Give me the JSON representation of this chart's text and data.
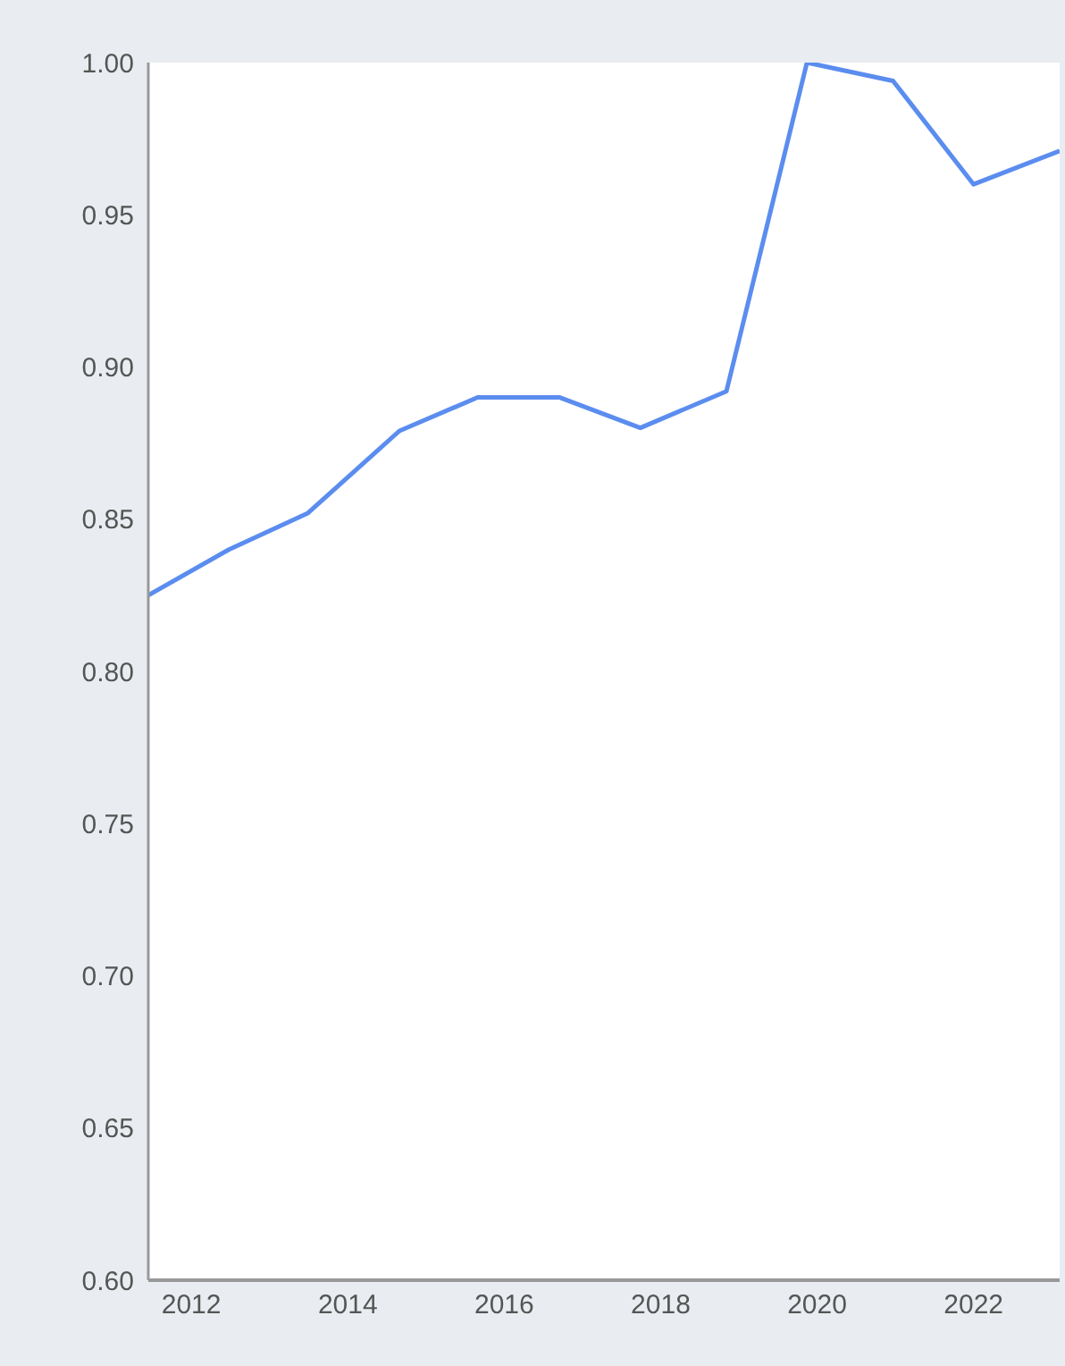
{
  "chart_data": {
    "type": "line",
    "x": [
      2011.45,
      2012.48,
      2013.49,
      2014.66,
      2015.66,
      2016.71,
      2017.74,
      2018.84,
      2019.87,
      2020.97,
      2022.0,
      2023.1
    ],
    "series": [
      {
        "color": "#5b8def",
        "values": [
          0.825,
          0.84,
          0.852,
          0.879,
          0.89,
          0.89,
          0.88,
          0.892,
          1.0,
          0.994,
          0.96,
          0.971
        ]
      }
    ],
    "xlim": [
      2011.45,
      2023.1
    ],
    "xticks": [
      2012,
      2014,
      2016,
      2018,
      2020,
      2022
    ],
    "ylim": [
      0.6,
      1.0
    ],
    "yticks": [
      {
        "value": 0.6,
        "label": "0.60"
      },
      {
        "value": 0.65,
        "label": "0.65"
      },
      {
        "value": 0.7,
        "label": "0.70"
      },
      {
        "value": 0.75,
        "label": "0.75"
      },
      {
        "value": 0.8,
        "label": "0.80"
      },
      {
        "value": 0.85,
        "label": "0.85"
      },
      {
        "value": 0.9,
        "label": "0.90"
      },
      {
        "value": 0.95,
        "label": "0.95"
      },
      {
        "value": 1.0,
        "label": "1.00"
      }
    ],
    "grid": false,
    "legend": false,
    "marker": "none",
    "line_style": "solid"
  }
}
